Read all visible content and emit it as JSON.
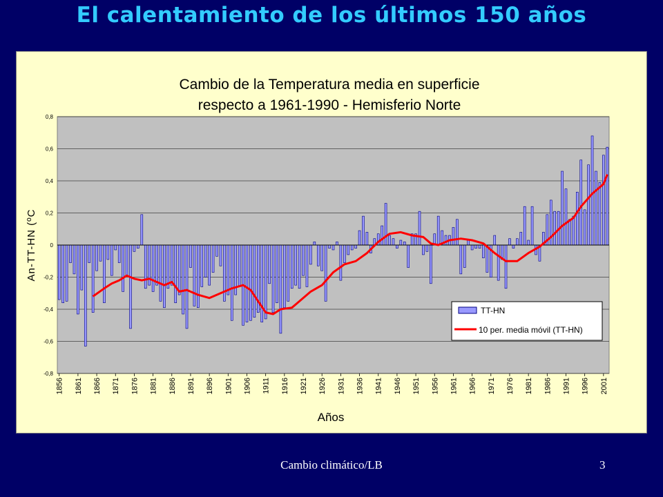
{
  "slide": {
    "title": "El calentamiento de los últimos 150 años",
    "footer": "Cambio climático/LB",
    "page_number": "3"
  },
  "colors": {
    "background": "#000066",
    "title": "#33ccff",
    "panel": "#ffffcc",
    "plot_area": "#c0c0c0",
    "bar_fill": "#9999ff",
    "bar_stroke": "#000080",
    "moving_average": "#ff0000"
  },
  "chart_data": {
    "type": "bar",
    "title_line1": "Cambio de la Temperatura media en superficie",
    "title_line2": "respecto a 1961-1990 - Hemisferio Norte",
    "xlabel": "Años",
    "ylabel": "An-TT-HN (ºC",
    "ylim": [
      -0.8,
      0.8
    ],
    "yticks": [
      "0,8",
      "0,6",
      "0,4",
      "0,2",
      "0",
      "-0,2",
      "-0,4",
      "-0,6",
      "-0,8"
    ],
    "ytick_values": [
      0.8,
      0.6,
      0.4,
      0.2,
      0,
      -0.2,
      -0.4,
      -0.6,
      -0.8
    ],
    "xticks": [
      "1856",
      "1861",
      "1866",
      "1871",
      "1876",
      "1881",
      "1886",
      "1891",
      "1896",
      "1901",
      "1906",
      "1911",
      "1916",
      "1921",
      "1926",
      "1931",
      "1936",
      "1941",
      "1946",
      "1951",
      "1956",
      "1961",
      "1966",
      "1971",
      "1976",
      "1981",
      "1986",
      "1991",
      "1996",
      "2001"
    ],
    "grid": true,
    "legend_position": "bottom-right",
    "x_start": 1856,
    "x_end": 2002,
    "series": [
      {
        "name": "TT-HN",
        "type": "bar",
        "values": [
          -0.34,
          -0.36,
          -0.35,
          -0.11,
          -0.18,
          -0.43,
          -0.28,
          -0.63,
          -0.11,
          -0.42,
          -0.16,
          -0.1,
          -0.36,
          -0.09,
          -0.19,
          -0.03,
          -0.11,
          -0.29,
          -0.19,
          -0.52,
          -0.04,
          -0.02,
          0.19,
          -0.27,
          -0.25,
          -0.29,
          -0.25,
          -0.35,
          -0.39,
          -0.27,
          -0.25,
          -0.36,
          -0.31,
          -0.43,
          -0.52,
          -0.14,
          -0.38,
          -0.39,
          -0.26,
          -0.2,
          -0.25,
          -0.17,
          -0.07,
          -0.13,
          -0.35,
          -0.31,
          -0.47,
          -0.31,
          -0.26,
          -0.5,
          -0.48,
          -0.47,
          -0.45,
          -0.42,
          -0.48,
          -0.46,
          -0.24,
          -0.42,
          -0.36,
          -0.55,
          -0.39,
          -0.35,
          -0.27,
          -0.25,
          -0.27,
          -0.19,
          -0.26,
          -0.12,
          0.02,
          -0.13,
          -0.16,
          -0.35,
          -0.02,
          -0.03,
          0.02,
          -0.22,
          -0.11,
          -0.06,
          -0.03,
          -0.02,
          0.09,
          0.18,
          0.08,
          -0.05,
          0.04,
          0.07,
          0.12,
          0.26,
          0.06,
          0.04,
          -0.02,
          0.03,
          0.02,
          -0.14,
          0.07,
          0.07,
          0.21,
          -0.06,
          -0.04,
          -0.24,
          0.07,
          0.18,
          0.09,
          0.06,
          0.06,
          0.11,
          0.16,
          -0.18,
          -0.14,
          0.03,
          -0.03,
          -0.02,
          -0.02,
          -0.08,
          -0.17,
          -0.2,
          0.06,
          -0.22,
          -0.09,
          -0.27,
          0.04,
          -0.02,
          0.04,
          0.08,
          0.24,
          0.03,
          0.24,
          -0.06,
          -0.1,
          0.08,
          0.19,
          0.28,
          0.21,
          0.21,
          0.46,
          0.35,
          0.16,
          0.18,
          0.33,
          0.53,
          0.22,
          0.5,
          0.68,
          0.46,
          0.39,
          0.56,
          0.61
        ]
      },
      {
        "name": "10 per. media móvil (TT-HN)",
        "type": "line",
        "x": [
          1865,
          1868,
          1870,
          1872,
          1874,
          1876,
          1878,
          1880,
          1882,
          1884,
          1886,
          1888,
          1890,
          1893,
          1896,
          1899,
          1902,
          1905,
          1907,
          1909,
          1911,
          1913,
          1915,
          1918,
          1920,
          1923,
          1926,
          1929,
          1932,
          1935,
          1938,
          1941,
          1944,
          1947,
          1950,
          1953,
          1955,
          1957,
          1960,
          1963,
          1966,
          1969,
          1972,
          1975,
          1978,
          1981,
          1984,
          1987,
          1990,
          1993,
          1995,
          1998,
          2001,
          2002
        ],
        "y": [
          -0.32,
          -0.27,
          -0.24,
          -0.22,
          -0.19,
          -0.21,
          -0.22,
          -0.21,
          -0.23,
          -0.25,
          -0.23,
          -0.29,
          -0.28,
          -0.31,
          -0.33,
          -0.3,
          -0.27,
          -0.25,
          -0.28,
          -0.35,
          -0.42,
          -0.43,
          -0.4,
          -0.39,
          -0.35,
          -0.29,
          -0.25,
          -0.17,
          -0.12,
          -0.1,
          -0.05,
          0.02,
          0.07,
          0.08,
          0.06,
          0.05,
          0.01,
          0.0,
          0.03,
          0.04,
          0.03,
          0.01,
          -0.05,
          -0.1,
          -0.1,
          -0.05,
          -0.01,
          0.05,
          0.12,
          0.17,
          0.24,
          0.32,
          0.38,
          0.44
        ]
      }
    ]
  }
}
